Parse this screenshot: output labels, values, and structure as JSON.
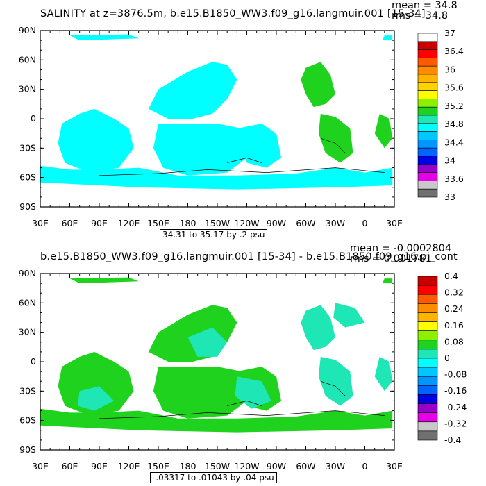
{
  "chart_data": [
    {
      "type": "heatmap",
      "title": "SALINITY at z=3876.5m, b.e15.B1850_WW3.f09_g16.langmuir.001 [15-34]",
      "stats": {
        "mean": "mean = 34.8",
        "rms": "rms = 34.8"
      },
      "range_note": "34.31 to 35.17 by .2 psu",
      "x_ticks": [
        "30E",
        "60E",
        "90E",
        "120E",
        "150E",
        "180",
        "150W",
        "120W",
        "90W",
        "60W",
        "30W",
        "0",
        "30E"
      ],
      "y_ticks": [
        "90N",
        "60N",
        "30N",
        "0",
        "30S",
        "60S",
        "90S"
      ],
      "colorbar": {
        "labels": [
          "37",
          "36.4",
          "36",
          "35.6",
          "35.2",
          "34.8",
          "34.4",
          "34",
          "33.6",
          "33"
        ],
        "colors": [
          "#ffffff",
          "#c80000",
          "#ff0000",
          "#ff5a00",
          "#ff8c00",
          "#ffb400",
          "#ffd200",
          "#ffff00",
          "#8cf000",
          "#1ed21e",
          "#1ee6b4",
          "#00ffff",
          "#00c8ff",
          "#0096ff",
          "#0064ff",
          "#0000e6",
          "#9600c8",
          "#e600e6",
          "#c8c8c8",
          "#707070"
        ]
      },
      "dominant_values": [
        {
          "region": "Pacific, Indian and Southern Ocean",
          "color": "#00ffff"
        },
        {
          "region": "North and South Atlantic",
          "color": "#1ed21e"
        }
      ]
    },
    {
      "type": "heatmap",
      "title": "b.e15.B1850_WW3.f09_g16.langmuir.001 [15-34] - b.e15.B1850.f09_g16.pi_cont",
      "stats": {
        "mean": "mean = -0.0002804",
        "rms": "rms = 0.001781"
      },
      "range_note": "-.03317 to .01043 by .04 psu",
      "x_ticks": [
        "30E",
        "60E",
        "90E",
        "120E",
        "150E",
        "180",
        "150W",
        "120W",
        "90W",
        "60W",
        "30W",
        "0",
        "30E"
      ],
      "y_ticks": [
        "90N",
        "60N",
        "30N",
        "0",
        "30S",
        "60S",
        "90S"
      ],
      "colorbar": {
        "labels": [
          "0.4",
          "0.32",
          "0.24",
          "0.16",
          "0.08",
          "0",
          "-0.08",
          "-0.16",
          "-0.24",
          "-0.32",
          "-0.4"
        ],
        "colors": [
          "#c80000",
          "#ff0000",
          "#ff5a00",
          "#ff8c00",
          "#ffb400",
          "#ffff00",
          "#8cf000",
          "#1ed21e",
          "#1ee6b4",
          "#00ffff",
          "#00c8ff",
          "#0096ff",
          "#0064ff",
          "#0000e6",
          "#9600c8",
          "#e600e6",
          "#c8c8c8",
          "#707070"
        ]
      },
      "dominant_values": [
        {
          "region": "mixed 0 to 0.08 bin",
          "color": "#1ed21e"
        },
        {
          "region": "mixed 0 to -0.08 bin",
          "color": "#1ee6b4"
        }
      ]
    }
  ]
}
